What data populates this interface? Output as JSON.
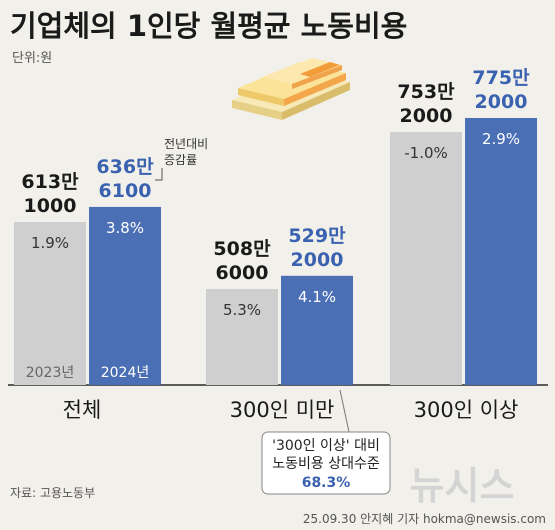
{
  "header": {
    "title": "기업체의 1인당 월평균 노동비용",
    "unit": "단위:원"
  },
  "chart_data": {
    "type": "bar",
    "categories": [
      "전체",
      "300인 미만",
      "300인 이상"
    ],
    "series": [
      {
        "name": "2023년",
        "color": "#cfcfcf",
        "values": [
          6131000,
          5086000,
          7532000
        ],
        "labels": [
          [
            "613만",
            "1000"
          ],
          [
            "508만",
            "6000"
          ],
          [
            "753만",
            "2000"
          ]
        ],
        "growth": [
          "1.9%",
          "5.3%",
          "-1.0%"
        ]
      },
      {
        "name": "2024년",
        "color": "#4a6fb5",
        "values": [
          6366100,
          5292000,
          7752000
        ],
        "labels": [
          [
            "636만",
            "6100"
          ],
          [
            "529만",
            "2000"
          ],
          [
            "775만",
            "2000"
          ]
        ],
        "growth": [
          "3.8%",
          "4.1%",
          "2.9%"
        ]
      }
    ],
    "annotations": {
      "growth_note": [
        "전년대비",
        "증감률"
      ],
      "ratio_note": [
        "'300인 이상' 대비",
        "노동비용 상대수준"
      ],
      "ratio_value": "68.3%"
    }
  },
  "footer": {
    "source": "자료: 고용노동부",
    "credit": "25.09.30 안지혜 기자 hokma@newsis.com",
    "watermark": "뉴시스"
  }
}
